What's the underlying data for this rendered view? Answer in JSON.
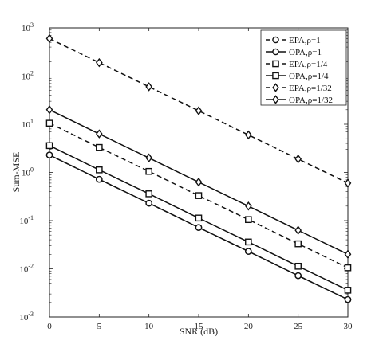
{
  "chart_data": {
    "type": "line",
    "title": "",
    "xlabel": "SNR (dB)",
    "ylabel": "Sum-MSE",
    "xlim": [
      0,
      30
    ],
    "ylim": [
      0.001,
      1000
    ],
    "yscale": "log",
    "x_ticks": [
      0,
      5,
      10,
      15,
      20,
      25,
      30
    ],
    "y_ticks": [
      {
        "value": 0.001,
        "mantissa": "10",
        "exponent": "-3"
      },
      {
        "value": 0.01,
        "mantissa": "10",
        "exponent": "-2"
      },
      {
        "value": 0.1,
        "mantissa": "10",
        "exponent": "-1"
      },
      {
        "value": 1,
        "mantissa": "10",
        "exponent": "0"
      },
      {
        "value": 10,
        "mantissa": "10",
        "exponent": "1"
      },
      {
        "value": 100,
        "mantissa": "10",
        "exponent": "2"
      },
      {
        "value": 1000,
        "mantissa": "10",
        "exponent": "3"
      }
    ],
    "grid": false,
    "legend_position": "top-right",
    "x": [
      0,
      5,
      10,
      15,
      20,
      25,
      30
    ],
    "series": [
      {
        "name": "EPA,ρ=1",
        "values": [
          2.3,
          0.72,
          0.23,
          0.072,
          0.023,
          0.0072,
          0.0023
        ],
        "marker": "circle",
        "dash": "dashed"
      },
      {
        "name": "OPA,ρ=1",
        "values": [
          2.3,
          0.72,
          0.23,
          0.072,
          0.023,
          0.0072,
          0.0023
        ],
        "marker": "circle",
        "dash": "solid"
      },
      {
        "name": "EPA,ρ=1/4",
        "values": [
          10.5,
          3.3,
          1.05,
          0.33,
          0.105,
          0.033,
          0.0105
        ],
        "marker": "square",
        "dash": "dashed"
      },
      {
        "name": "OPA,ρ=1/4",
        "values": [
          3.6,
          1.13,
          0.36,
          0.113,
          0.036,
          0.0113,
          0.0036
        ],
        "marker": "square",
        "dash": "solid"
      },
      {
        "name": "EPA,ρ=1/32",
        "values": [
          600,
          190,
          60,
          19,
          6,
          1.9,
          0.6
        ],
        "marker": "diamond",
        "dash": "dashed"
      },
      {
        "name": "OPA,ρ=1/32",
        "values": [
          20,
          6.3,
          2.0,
          0.63,
          0.2,
          0.063,
          0.02
        ],
        "marker": "diamond",
        "dash": "solid"
      }
    ]
  }
}
